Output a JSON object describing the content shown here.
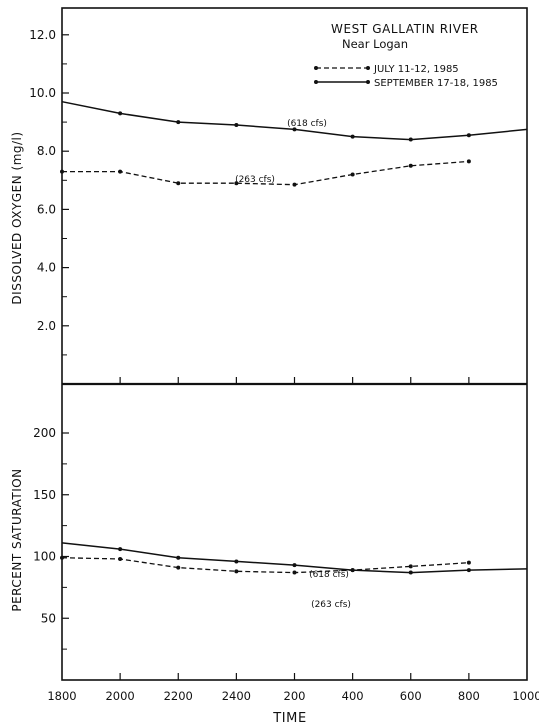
{
  "chart_data": [
    {
      "type": "line",
      "title": "WEST GALLATIN RIVER",
      "subtitle": "Near Logan",
      "xlabel": "TIME",
      "ylabel": "DISSOLVED OXYGEN (mg/l)",
      "x_ticks": [
        "1800",
        "2000",
        "2200",
        "2400",
        "200",
        "400",
        "600",
        "800",
        "1000"
      ],
      "y_ticks": [
        "2.0",
        "4.0",
        "6.0",
        "8.0",
        "10.0",
        "12.0"
      ],
      "ylim": [
        0,
        13.0
      ],
      "legend_position": "top-right",
      "series": [
        {
          "name": "SEPTEMBER 17-18, 1985",
          "style": "solid",
          "color": "#111111",
          "flow_label": "(618 cfs)",
          "x": [
            "1800",
            "2000",
            "2200",
            "2400",
            "200",
            "400",
            "600",
            "800",
            "1000"
          ],
          "values": [
            9.7,
            9.3,
            9.0,
            8.9,
            8.75,
            8.5,
            8.4,
            8.55,
            8.75
          ]
        },
        {
          "name": "JULY 11-12, 1985",
          "style": "dashed",
          "color": "#111111",
          "flow_label": "(263 cfs)",
          "x": [
            "1800",
            "2000",
            "2200",
            "2400",
            "200",
            "400",
            "600",
            "800"
          ],
          "values": [
            7.3,
            7.3,
            6.9,
            6.9,
            6.85,
            7.2,
            7.5,
            7.65
          ]
        }
      ]
    },
    {
      "type": "line",
      "xlabel": "TIME",
      "ylabel": "PERCENT SATURATION",
      "x_ticks": [
        "1800",
        "2000",
        "2200",
        "2400",
        "200",
        "400",
        "600",
        "800",
        "1000"
      ],
      "y_ticks": [
        "50",
        "100",
        "150",
        "200"
      ],
      "ylim": [
        0,
        210
      ],
      "series": [
        {
          "name": "SEPTEMBER 17-18, 1985",
          "style": "solid",
          "color": "#111111",
          "flow_label": "(618 cfs)",
          "x": [
            "1800",
            "2000",
            "2200",
            "2400",
            "200",
            "400",
            "600",
            "800",
            "1000"
          ],
          "values": [
            111,
            106,
            99,
            96,
            93,
            89,
            87,
            89,
            90
          ]
        },
        {
          "name": "JULY 11-12, 1985",
          "style": "dashed",
          "color": "#111111",
          "flow_label": "(263 cfs)",
          "x": [
            "1800",
            "2000",
            "2200",
            "2400",
            "200",
            "400",
            "600",
            "800"
          ],
          "values": [
            99,
            98,
            91,
            88,
            87,
            89,
            92,
            95
          ]
        }
      ]
    }
  ]
}
